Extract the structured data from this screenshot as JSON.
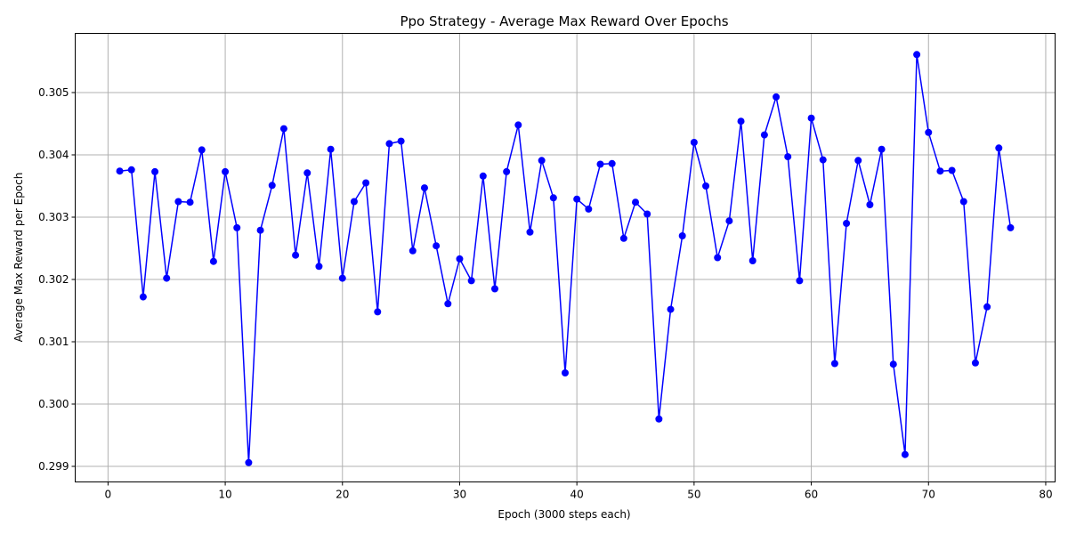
{
  "chart_data": {
    "type": "line",
    "title": "Ppo Strategy - Average Max Reward Over Epochs",
    "xlabel": "Epoch (3000 steps each)",
    "ylabel": "Average Max Reward per Epoch",
    "xlim": [
      -2.8,
      80.8
    ],
    "ylim": [
      0.29875,
      0.30595
    ],
    "xticks": [
      0,
      10,
      20,
      30,
      40,
      50,
      60,
      70,
      80
    ],
    "yticks": [
      0.299,
      0.3,
      0.301,
      0.302,
      0.303,
      0.304,
      0.305
    ],
    "xtick_labels": [
      "0",
      "10",
      "20",
      "30",
      "40",
      "50",
      "60",
      "70",
      "80"
    ],
    "ytick_labels": [
      "0.299",
      "0.300",
      "0.301",
      "0.302",
      "0.303",
      "0.304",
      "0.305"
    ],
    "grid": true,
    "series": [
      {
        "color": "#0000ff",
        "marker": "circle",
        "x": [
          1,
          2,
          3,
          4,
          5,
          6,
          7,
          8,
          9,
          10,
          11,
          12,
          13,
          14,
          15,
          16,
          17,
          18,
          19,
          20,
          21,
          22,
          23,
          24,
          25,
          26,
          27,
          28,
          29,
          30,
          31,
          32,
          33,
          34,
          35,
          36,
          37,
          38,
          39,
          40,
          41,
          42,
          43,
          44,
          45,
          46,
          47,
          48,
          49,
          50,
          51,
          52,
          53,
          54,
          55,
          56,
          57,
          58,
          59,
          60,
          61,
          62,
          63,
          64,
          65,
          66,
          67,
          68,
          69,
          70,
          71,
          72,
          73,
          74,
          75,
          76,
          77
        ],
        "y": [
          0.30374,
          0.30376,
          0.30172,
          0.30373,
          0.30202,
          0.30325,
          0.30324,
          0.30408,
          0.30229,
          0.30373,
          0.30283,
          0.29906,
          0.30279,
          0.30351,
          0.30442,
          0.30239,
          0.30371,
          0.30221,
          0.30409,
          0.30202,
          0.30325,
          0.30355,
          0.30148,
          0.30418,
          0.30422,
          0.30246,
          0.30347,
          0.30254,
          0.30161,
          0.30233,
          0.30198,
          0.30366,
          0.30185,
          0.30373,
          0.30448,
          0.30276,
          0.30391,
          0.30331,
          0.3005,
          0.30329,
          0.30313,
          0.30385,
          0.30386,
          0.30266,
          0.30324,
          0.30305,
          0.29976,
          0.30152,
          0.3027,
          0.3042,
          0.3035,
          0.30235,
          0.30294,
          0.30454,
          0.3023,
          0.30432,
          0.30493,
          0.30397,
          0.30198,
          0.30459,
          0.30392,
          0.30065,
          0.3029,
          0.30391,
          0.3032,
          0.30409,
          0.30064,
          0.29919,
          0.30561,
          0.30436,
          0.30374,
          0.30375,
          0.30325,
          0.30066,
          0.30156,
          0.30411,
          0.30283
        ]
      }
    ]
  }
}
